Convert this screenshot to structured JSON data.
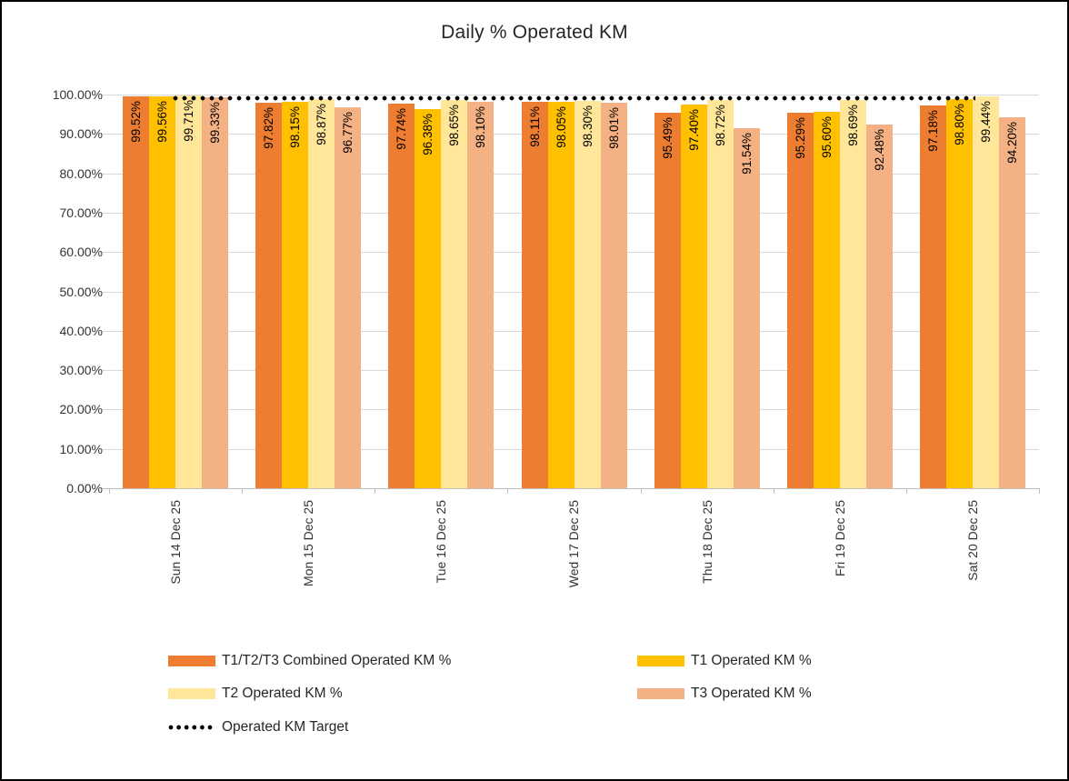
{
  "chart_data": {
    "type": "bar",
    "title": "Daily % Operated KM",
    "categories": [
      "Sun 14 Dec 25",
      "Mon 15 Dec 25",
      "Tue 16 Dec 25",
      "Wed 17 Dec 25",
      "Thu 18 Dec 25",
      "Fri 19 Dec 25",
      "Sat 20 Dec 25"
    ],
    "series": [
      {
        "name": "T1/T2/T3 Combined Operated KM %",
        "color": "#ED7D31",
        "values": [
          99.52,
          97.82,
          97.74,
          98.11,
          95.49,
          95.29,
          97.18
        ]
      },
      {
        "name": "T1 Operated KM %",
        "color": "#FFC000",
        "values": [
          99.56,
          98.15,
          96.38,
          98.05,
          97.4,
          95.6,
          98.8
        ]
      },
      {
        "name": "T2 Operated KM %",
        "color": "#FFE699",
        "values": [
          99.71,
          98.87,
          98.65,
          98.3,
          98.72,
          98.69,
          99.44
        ]
      },
      {
        "name": "T3 Operated KM %",
        "color": "#F4B183",
        "values": [
          99.33,
          96.77,
          98.1,
          98.01,
          91.54,
          92.48,
          94.2
        ]
      }
    ],
    "target_line": {
      "name": "Operated KM Target",
      "value": 99,
      "color": "#000000",
      "style": "dotted"
    },
    "y_axis": {
      "min": 0,
      "max": 100,
      "step": 10,
      "tick_labels": [
        "0.00%",
        "10.00%",
        "20.00%",
        "30.00%",
        "40.00%",
        "50.00%",
        "60.00%",
        "70.00%",
        "80.00%",
        "90.00%",
        "100.00%"
      ]
    },
    "data_label_format": "0.00%",
    "data_labels_rotated": true,
    "grid": true,
    "legend_position": "bottom"
  },
  "legend": {
    "items": [
      {
        "label": "T1/T2/T3 Combined Operated KM %",
        "swatch": "color",
        "color": "#ED7D31",
        "col": 0,
        "row": 0
      },
      {
        "label": "T1 Operated KM %",
        "swatch": "color",
        "color": "#FFC000",
        "col": 1,
        "row": 0
      },
      {
        "label": "T2 Operated KM %",
        "swatch": "color",
        "color": "#FFE699",
        "col": 0,
        "row": 1
      },
      {
        "label": "T3 Operated KM %",
        "swatch": "color",
        "color": "#F4B183",
        "col": 1,
        "row": 1
      },
      {
        "label": "Operated KM Target",
        "swatch": "dotted",
        "color": "#000000",
        "col": 0,
        "row": 2
      }
    ]
  },
  "colors": {
    "gridline": "#D9D9D9",
    "axis_line": "#BFBFBF",
    "text": "#262626",
    "background": "#FFFFFF",
    "border": "#000000"
  }
}
